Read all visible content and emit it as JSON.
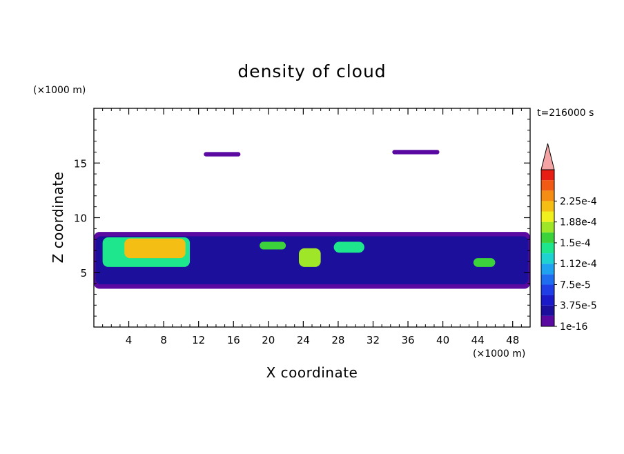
{
  "chart_data": {
    "type": "heatmap",
    "title": "density of cloud",
    "xlabel": "X coordinate",
    "ylabel": "Z coordinate",
    "x_unit": "(×1000 m)",
    "y_unit": "(×1000 m)",
    "time_label": "t=216000 s",
    "xlim": [
      0,
      50
    ],
    "ylim": [
      0,
      20
    ],
    "x_ticks": [
      4,
      8,
      12,
      16,
      20,
      24,
      28,
      32,
      36,
      40,
      44,
      48
    ],
    "y_ticks": [
      5,
      10,
      15
    ],
    "colorbar": {
      "labels": [
        "1e-16",
        "3.75e-5",
        "7.5e-5",
        "1.12e-4",
        "1.5e-4",
        "1.88e-4",
        "2.25e-4"
      ],
      "levels": [
        1e-16,
        1.875e-05,
        3.75e-05,
        5.625e-05,
        7.5e-05,
        9.375e-05,
        0.0001125,
        0.00013125,
        0.00015,
        0.00016875,
        0.0001875,
        0.00020625,
        0.000225,
        0.00024375
      ],
      "colors": [
        "#5a0aa0",
        "#1c0f9c",
        "#1a1ac8",
        "#1f3ee6",
        "#1f6ef0",
        "#1fa2f0",
        "#1ed2d2",
        "#1ee68c",
        "#3cd23c",
        "#a0e628",
        "#f0f01e",
        "#f5be14",
        "#f58c14",
        "#f05a14",
        "#e61e14"
      ],
      "extend_color": "#f4a4a4"
    },
    "cloud_regions": [
      {
        "x": [
          0.0,
          50.0
        ],
        "z": [
          3.5,
          8.7
        ],
        "level_index": 0
      },
      {
        "x": [
          0.2,
          49.8
        ],
        "z": [
          3.9,
          8.3
        ],
        "level_index": 1
      },
      {
        "x": [
          1.0,
          11.0
        ],
        "z": [
          5.5,
          8.2
        ],
        "level_index": 7
      },
      {
        "x": [
          3.5,
          10.5
        ],
        "z": [
          6.3,
          8.1
        ],
        "level_index": 11
      },
      {
        "x": [
          19.0,
          22.0
        ],
        "z": [
          7.1,
          7.8
        ],
        "level_index": 8
      },
      {
        "x": [
          27.5,
          31.0
        ],
        "z": [
          6.8,
          7.8
        ],
        "level_index": 7
      },
      {
        "x": [
          23.5,
          26.0
        ],
        "z": [
          5.5,
          7.2
        ],
        "level_index": 9
      },
      {
        "x": [
          43.5,
          46.0
        ],
        "z": [
          5.5,
          6.3
        ],
        "level_index": 8
      },
      {
        "x": [
          12.6,
          16.8
        ],
        "z": [
          15.6,
          16.0
        ],
        "level_index": 0
      },
      {
        "x": [
          34.2,
          39.6
        ],
        "z": [
          15.8,
          16.2
        ],
        "level_index": 0
      }
    ]
  }
}
